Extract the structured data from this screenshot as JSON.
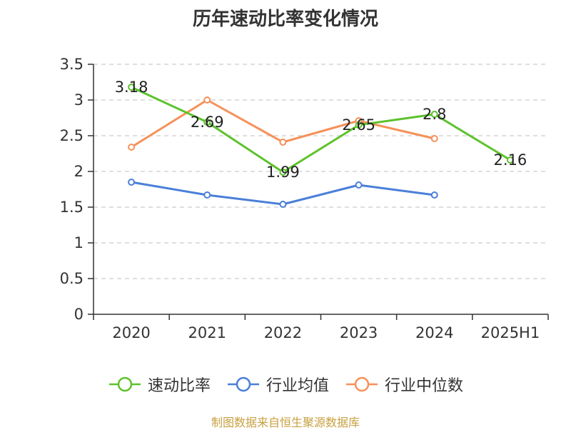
{
  "source_note": "制图数据来自恒生聚源数据库",
  "chart_data": {
    "type": "line",
    "title": "历年速动比率变化情况",
    "xlabel": "",
    "ylabel": "",
    "categories": [
      "2020",
      "2021",
      "2022",
      "2023",
      "2024",
      "2025H1"
    ],
    "ylim": [
      0,
      3.5
    ],
    "yticks": [
      0,
      0.5,
      1,
      1.5,
      2,
      2.5,
      3,
      3.5
    ],
    "ytick_labels": [
      "0",
      "0.5",
      "1",
      "1.5",
      "2",
      "2.5",
      "3",
      "3.5"
    ],
    "grid": true,
    "legend_position": "bottom",
    "series": [
      {
        "name": "速动比率",
        "color": "#5cc22c",
        "values": [
          3.18,
          2.69,
          1.99,
          2.65,
          2.8,
          2.16
        ],
        "data_labels": [
          "3.18",
          "2.69",
          "1.99",
          "2.65",
          "2.8",
          "2.16"
        ]
      },
      {
        "name": "行业均值",
        "color": "#4a7fd8",
        "values": [
          1.85,
          1.67,
          1.54,
          1.81,
          1.67,
          null
        ]
      },
      {
        "name": "行业中位数",
        "color": "#f5915a",
        "values": [
          2.34,
          3.0,
          2.41,
          2.71,
          2.46,
          null
        ]
      }
    ]
  }
}
